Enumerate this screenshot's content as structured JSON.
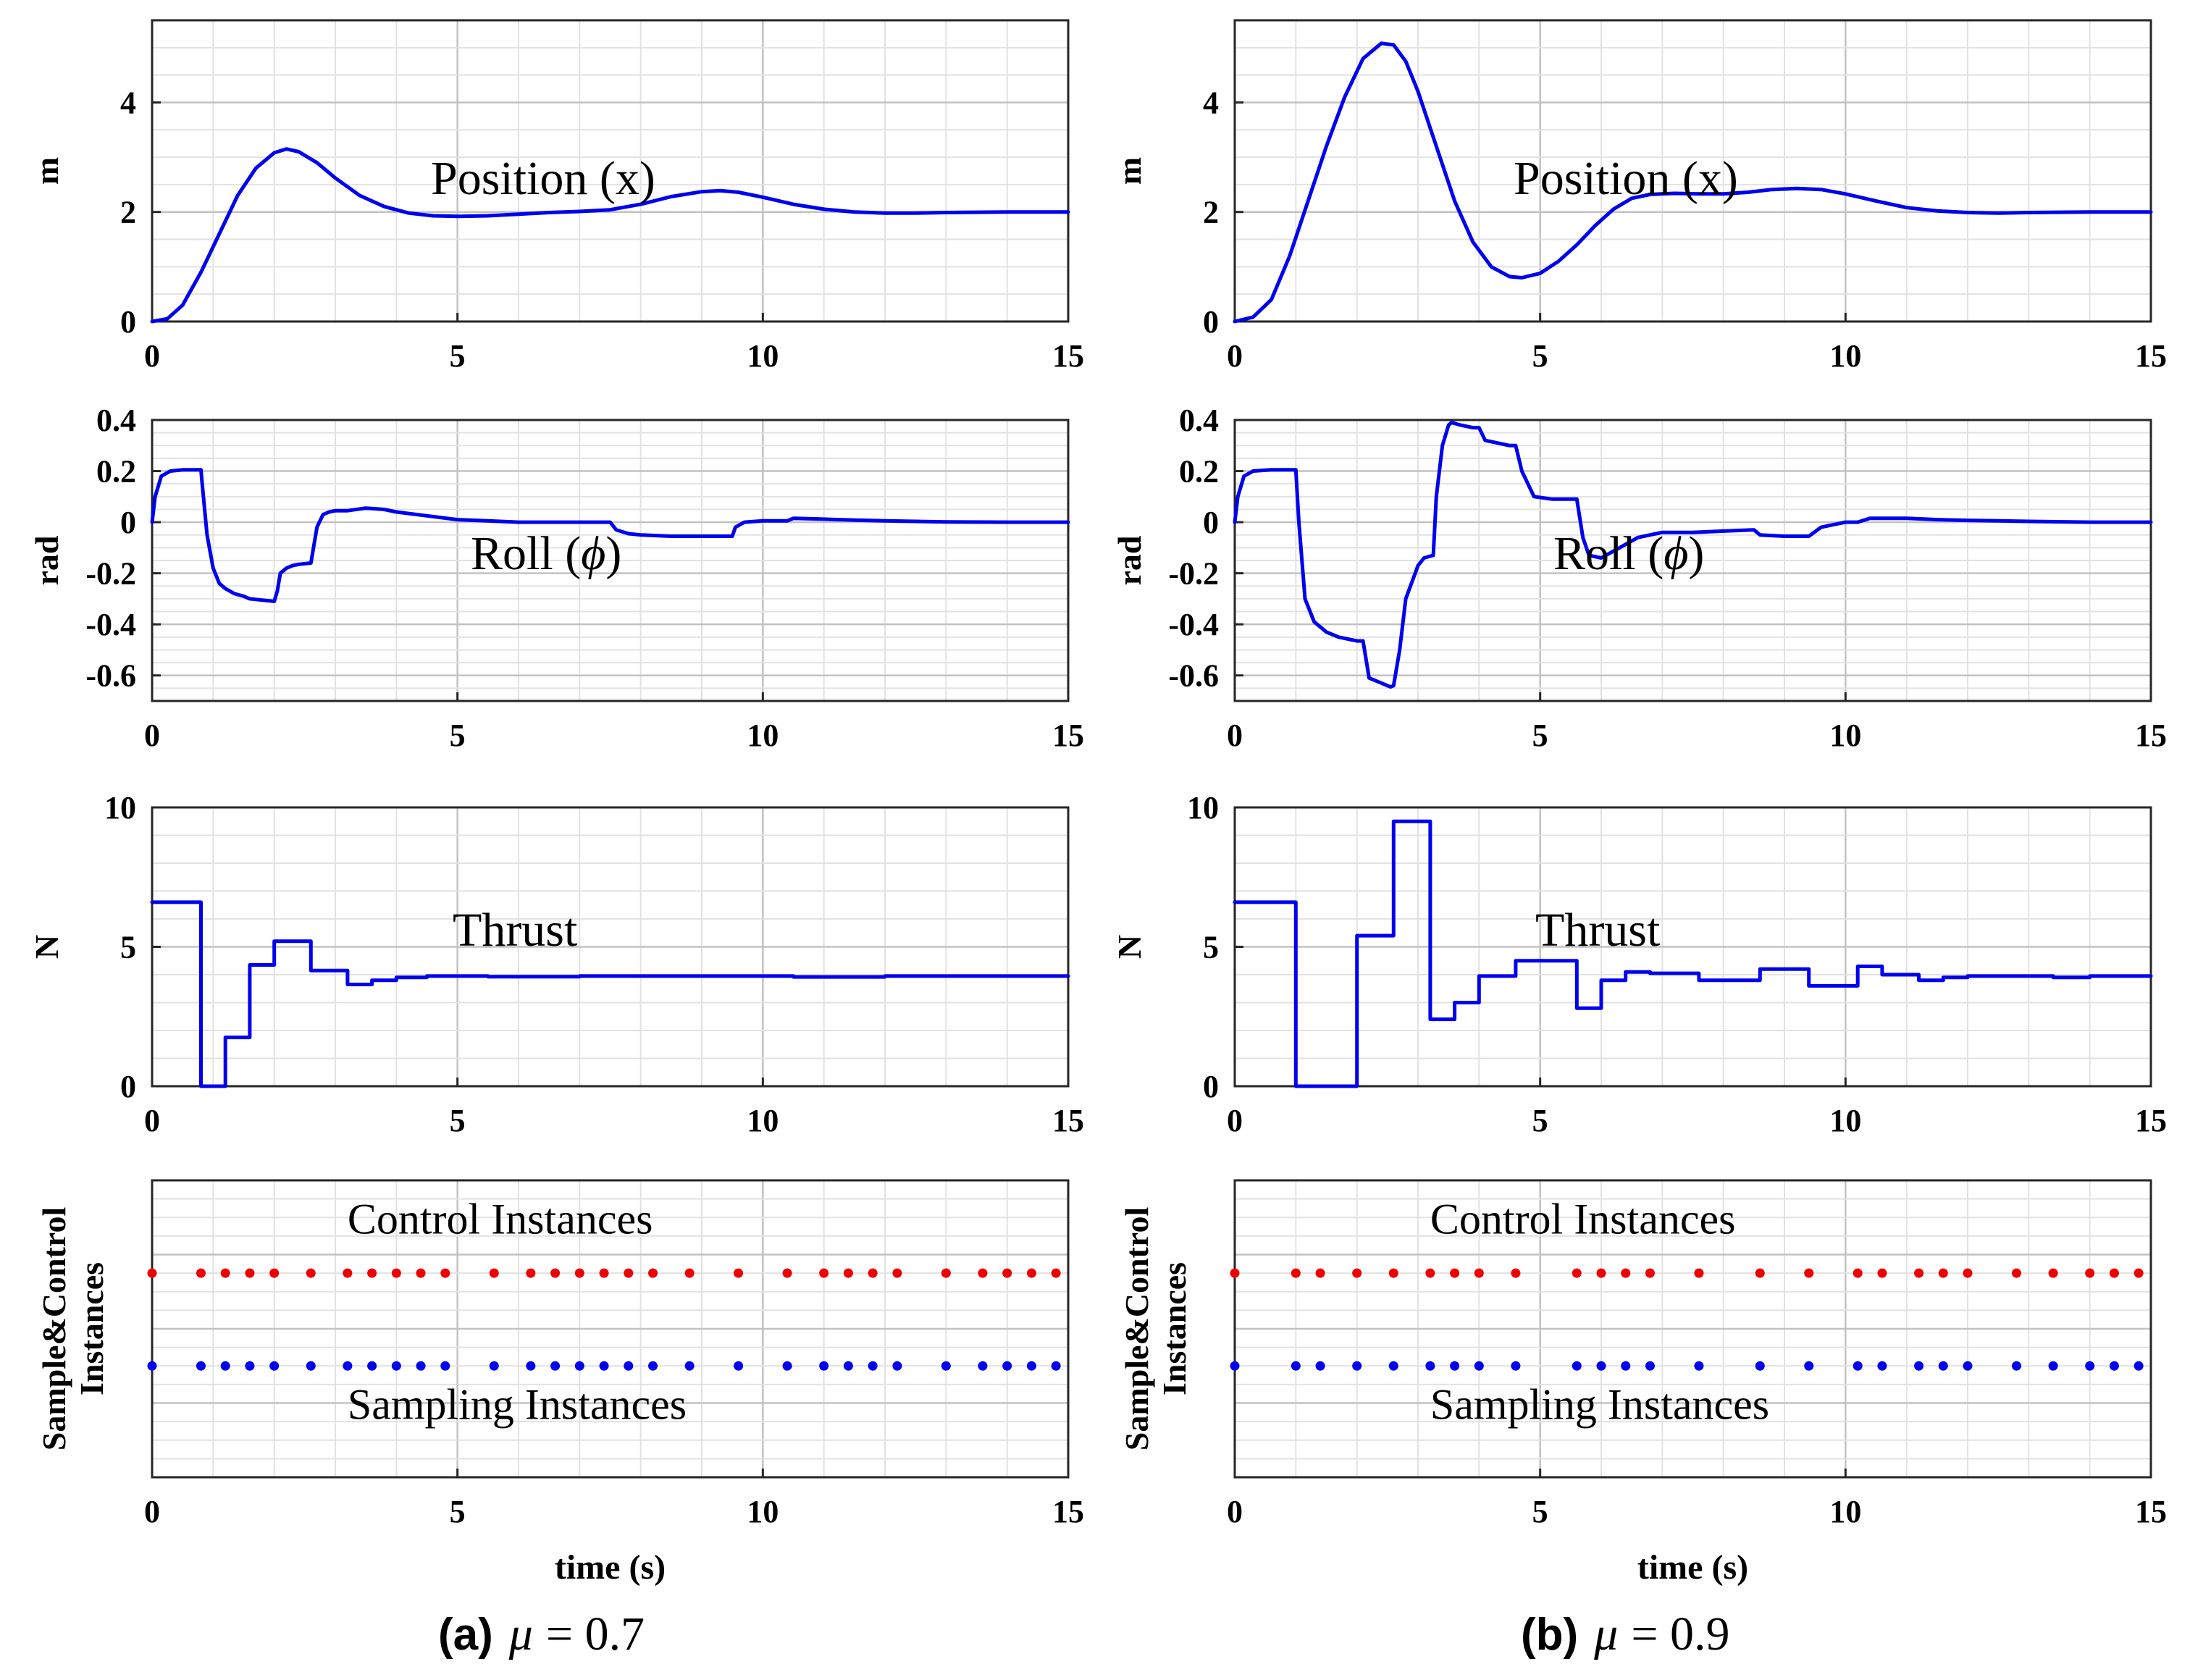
{
  "colors": {
    "line": "#0000ee",
    "control": "#ee0000",
    "sampling": "#0000ee"
  },
  "captions": [
    {
      "letter": "(a)",
      "mu": "μ",
      "eq": "= 0.7"
    },
    {
      "letter": "(b)",
      "mu": "μ",
      "eq": "= 0.9"
    }
  ],
  "chart_data": [
    {
      "type": "line",
      "column": 0,
      "row": 0,
      "ylabel": "m",
      "annotation": {
        "text": "Position (x)"
      },
      "xlim": [
        0,
        15
      ],
      "ylim": [
        0,
        5.5
      ],
      "xticks": [
        0,
        5,
        10,
        15
      ],
      "yticks": [
        0,
        2,
        4
      ],
      "xtick_labels": [
        "0",
        "5",
        "10",
        "15"
      ],
      "ytick_labels": [
        "0",
        "2",
        "4"
      ],
      "xlabel": "",
      "grid": true,
      "series": [
        {
          "name": "Position (x)",
          "x": [
            0,
            0.25,
            0.5,
            0.8,
            1.1,
            1.4,
            1.7,
            2.0,
            2.2,
            2.4,
            2.7,
            3.0,
            3.4,
            3.8,
            4.2,
            4.6,
            5.0,
            5.5,
            6.0,
            6.5,
            7.0,
            7.5,
            8.0,
            8.5,
            9.0,
            9.3,
            9.6,
            10.0,
            10.5,
            11.0,
            11.5,
            12.0,
            12.5,
            13.0,
            14.0,
            15.0
          ],
          "y": [
            0,
            0.05,
            0.3,
            0.9,
            1.6,
            2.3,
            2.8,
            3.08,
            3.15,
            3.1,
            2.9,
            2.62,
            2.3,
            2.1,
            1.98,
            1.93,
            1.92,
            1.93,
            1.96,
            1.99,
            2.01,
            2.04,
            2.14,
            2.28,
            2.37,
            2.39,
            2.36,
            2.27,
            2.14,
            2.05,
            2.0,
            1.98,
            1.98,
            1.99,
            2.0,
            2.0
          ]
        }
      ]
    },
    {
      "type": "line",
      "column": 1,
      "row": 0,
      "ylabel": "m",
      "annotation": {
        "text": "Position (x)"
      },
      "xlim": [
        0,
        15
      ],
      "ylim": [
        0,
        5.5
      ],
      "xticks": [
        0,
        5,
        10,
        15
      ],
      "yticks": [
        0,
        2,
        4
      ],
      "xtick_labels": [
        "0",
        "5",
        "10",
        "15"
      ],
      "ytick_labels": [
        "0",
        "2",
        "4"
      ],
      "xlabel": "",
      "grid": true,
      "series": [
        {
          "name": "Position (x)",
          "x": [
            0,
            0.3,
            0.6,
            0.9,
            1.2,
            1.5,
            1.8,
            2.1,
            2.4,
            2.6,
            2.8,
            3.0,
            3.3,
            3.6,
            3.9,
            4.2,
            4.5,
            4.7,
            5.0,
            5.3,
            5.6,
            5.9,
            6.2,
            6.5,
            6.8,
            7.2,
            7.6,
            8.0,
            8.4,
            8.8,
            9.2,
            9.6,
            10.0,
            10.5,
            11.0,
            11.5,
            12.0,
            12.5,
            13.0,
            14.0,
            15.0
          ],
          "y": [
            0,
            0.08,
            0.4,
            1.2,
            2.2,
            3.2,
            4.1,
            4.8,
            5.08,
            5.05,
            4.75,
            4.2,
            3.2,
            2.2,
            1.45,
            1.0,
            0.82,
            0.8,
            0.88,
            1.1,
            1.4,
            1.75,
            2.05,
            2.25,
            2.32,
            2.34,
            2.33,
            2.33,
            2.36,
            2.41,
            2.43,
            2.41,
            2.33,
            2.2,
            2.08,
            2.02,
            1.99,
            1.98,
            1.99,
            2.0,
            2.0
          ]
        }
      ]
    },
    {
      "type": "line",
      "column": 0,
      "row": 1,
      "ylabel": "rad",
      "annotation": {
        "text": "Roll (",
        "symbol": "ϕ",
        "close": ")"
      },
      "xlim": [
        0,
        15
      ],
      "ylim": [
        -0.7,
        0.4
      ],
      "xticks": [
        0,
        5,
        10,
        15
      ],
      "yticks": [
        -0.6,
        -0.4,
        -0.2,
        0,
        0.2,
        0.4
      ],
      "xtick_labels": [
        "0",
        "5",
        "10",
        "15"
      ],
      "ytick_labels": [
        "-0.6",
        "-0.4",
        "-0.2",
        "0",
        "0.2",
        "0.4"
      ],
      "xlabel": "",
      "grid": true,
      "series": [
        {
          "name": "Roll",
          "x": [
            0,
            0.05,
            0.15,
            0.3,
            0.5,
            0.8,
            0.82,
            0.9,
            1.0,
            1.1,
            1.2,
            1.35,
            1.5,
            1.6,
            1.8,
            2.0,
            2.05,
            2.1,
            2.2,
            2.3,
            2.4,
            2.6,
            2.7,
            2.8,
            2.9,
            3.0,
            3.2,
            3.5,
            3.8,
            4.0,
            4.5,
            5.0,
            5.5,
            6.0,
            6.5,
            7.0,
            7.5,
            7.6,
            7.8,
            8.0,
            8.5,
            9.0,
            9.5,
            9.55,
            9.7,
            10.0,
            10.4,
            10.5,
            11.0,
            11.5,
            12.0,
            12.5,
            13.0,
            14.0,
            15.0
          ],
          "y": [
            0,
            0.1,
            0.18,
            0.2,
            0.205,
            0.205,
            0.15,
            -0.05,
            -0.18,
            -0.24,
            -0.26,
            -0.28,
            -0.29,
            -0.3,
            -0.305,
            -0.31,
            -0.27,
            -0.2,
            -0.18,
            -0.17,
            -0.165,
            -0.16,
            -0.02,
            0.03,
            0.04,
            0.045,
            0.045,
            0.055,
            0.05,
            0.04,
            0.025,
            0.01,
            0.005,
            0.0,
            0.0,
            0.0,
            0.0,
            -0.03,
            -0.045,
            -0.05,
            -0.055,
            -0.055,
            -0.055,
            -0.02,
            0.0,
            0.005,
            0.005,
            0.015,
            0.012,
            0.008,
            0.005,
            0.003,
            0.001,
            0.0,
            0.0
          ]
        }
      ]
    },
    {
      "type": "line",
      "column": 1,
      "row": 1,
      "ylabel": "rad",
      "annotation": {
        "text": "Roll (",
        "symbol": "ϕ",
        "close": ")"
      },
      "xlim": [
        0,
        15
      ],
      "ylim": [
        -0.7,
        0.4
      ],
      "xticks": [
        0,
        5,
        10,
        15
      ],
      "yticks": [
        -0.6,
        -0.4,
        -0.2,
        0,
        0.2,
        0.4
      ],
      "xtick_labels": [
        "0",
        "5",
        "10",
        "15"
      ],
      "ytick_labels": [
        "-0.6",
        "-0.4",
        "-0.2",
        "0",
        "0.2",
        "0.4"
      ],
      "xlabel": "",
      "grid": true,
      "series": [
        {
          "name": "Roll",
          "x": [
            0,
            0.05,
            0.15,
            0.3,
            0.6,
            1.0,
            1.05,
            1.15,
            1.3,
            1.5,
            1.7,
            1.9,
            2.0,
            2.1,
            2.2,
            2.4,
            2.5,
            2.55,
            2.6,
            2.7,
            2.8,
            3.0,
            3.1,
            3.25,
            3.3,
            3.4,
            3.5,
            3.55,
            3.7,
            3.9,
            4.0,
            4.1,
            4.3,
            4.5,
            4.6,
            4.7,
            4.9,
            5.2,
            5.6,
            5.7,
            5.8,
            6.0,
            6.3,
            6.6,
            6.8,
            7.0,
            7.5,
            8.0,
            8.5,
            8.6,
            9.0,
            9.4,
            9.6,
            10.0,
            10.2,
            10.4,
            11.0,
            11.5,
            12.0,
            12.5,
            13.0,
            14.0,
            15.0
          ],
          "y": [
            0,
            0.1,
            0.18,
            0.2,
            0.205,
            0.205,
            0.0,
            -0.3,
            -0.39,
            -0.43,
            -0.45,
            -0.46,
            -0.465,
            -0.465,
            -0.61,
            -0.63,
            -0.64,
            -0.645,
            -0.64,
            -0.5,
            -0.3,
            -0.17,
            -0.14,
            -0.13,
            0.1,
            0.3,
            0.38,
            0.39,
            0.38,
            0.37,
            0.37,
            0.32,
            0.31,
            0.3,
            0.3,
            0.2,
            0.1,
            0.09,
            0.09,
            -0.06,
            -0.13,
            -0.14,
            -0.1,
            -0.06,
            -0.05,
            -0.04,
            -0.04,
            -0.035,
            -0.03,
            -0.05,
            -0.055,
            -0.055,
            -0.02,
            0.0,
            0.0,
            0.015,
            0.015,
            0.01,
            0.007,
            0.005,
            0.003,
            0.0,
            0.0
          ]
        }
      ]
    },
    {
      "type": "line",
      "column": 0,
      "row": 2,
      "ylabel": "N",
      "annotation": {
        "text": "Thrust"
      },
      "xlim": [
        0,
        15
      ],
      "ylim": [
        0,
        10
      ],
      "xticks": [
        0,
        5,
        10,
        15
      ],
      "yticks": [
        0,
        5,
        10
      ],
      "xtick_labels": [
        "0",
        "5",
        "10",
        "15"
      ],
      "ytick_labels": [
        "0",
        "5",
        "10"
      ],
      "xlabel": "",
      "grid": true,
      "series": [
        {
          "name": "Thrust",
          "x": [
            0,
            0.8,
            0.8,
            1.2,
            1.2,
            1.6,
            1.6,
            2.0,
            2.0,
            2.6,
            2.6,
            3.2,
            3.2,
            3.6,
            3.6,
            4.0,
            4.0,
            4.5,
            4.5,
            5.5,
            5.5,
            7.0,
            7.0,
            10.5,
            10.5,
            12.0,
            12.0,
            15.0
          ],
          "y": [
            6.6,
            6.6,
            0.0,
            0.0,
            1.75,
            1.75,
            4.35,
            4.35,
            5.2,
            5.2,
            4.15,
            4.15,
            3.65,
            3.65,
            3.8,
            3.8,
            3.9,
            3.9,
            3.95,
            3.95,
            3.93,
            3.93,
            3.95,
            3.95,
            3.92,
            3.92,
            3.95,
            3.95
          ]
        }
      ]
    },
    {
      "type": "line",
      "column": 1,
      "row": 2,
      "ylabel": "N",
      "annotation": {
        "text": "Thrust"
      },
      "xlim": [
        0,
        15
      ],
      "ylim": [
        0,
        10
      ],
      "xticks": [
        0,
        5,
        10,
        15
      ],
      "yticks": [
        0,
        5,
        10
      ],
      "xtick_labels": [
        "0",
        "5",
        "10",
        "15"
      ],
      "ytick_labels": [
        "0",
        "5",
        "10"
      ],
      "xlabel": "",
      "grid": true,
      "series": [
        {
          "name": "Thrust",
          "x": [
            0,
            1.0,
            1.0,
            2.0,
            2.0,
            2.6,
            2.6,
            3.2,
            3.2,
            3.6,
            3.6,
            4.0,
            4.0,
            4.6,
            4.6,
            5.6,
            5.6,
            6.0,
            6.0,
            6.4,
            6.4,
            6.8,
            6.8,
            7.6,
            7.6,
            8.6,
            8.6,
            9.4,
            9.4,
            10.2,
            10.2,
            10.6,
            10.6,
            11.2,
            11.2,
            11.6,
            11.6,
            12.0,
            12.0,
            12.8,
            12.8,
            13.4,
            13.4,
            14.0,
            14.0,
            15.0
          ],
          "y": [
            6.6,
            6.6,
            0.0,
            0.0,
            5.4,
            5.4,
            9.5,
            9.5,
            2.4,
            2.4,
            3.0,
            3.0,
            3.95,
            3.95,
            4.5,
            4.5,
            2.8,
            2.8,
            3.8,
            3.8,
            4.1,
            4.1,
            4.05,
            4.05,
            3.8,
            3.8,
            4.2,
            4.2,
            3.6,
            3.6,
            4.3,
            4.3,
            4.0,
            4.0,
            3.8,
            3.8,
            3.9,
            3.9,
            3.95,
            3.95,
            3.95,
            3.95,
            3.9,
            3.9,
            3.95,
            3.95
          ]
        }
      ]
    },
    {
      "type": "scatter",
      "column": 0,
      "row": 3,
      "ylabel": "Sample&Control Instances",
      "ylabel_lines": [
        "Sample&Control",
        "Instances"
      ],
      "xlabel": "time (s)",
      "annotations": [
        {
          "text": "Control Instances",
          "x": 3.2,
          "y": 0.8
        },
        {
          "text": "Sampling Instances",
          "x": 3.2,
          "y": -0.2
        }
      ],
      "xlim": [
        0,
        15
      ],
      "ylim": [
        -0.6,
        1.0
      ],
      "xticks": [
        0,
        5,
        10,
        15
      ],
      "yticks": [],
      "xtick_labels": [
        "0",
        "5",
        "10",
        "15"
      ],
      "ytick_labels": [],
      "grid": true,
      "series": [
        {
          "name": "Control Instances",
          "color_key": "control",
          "y_level": 0.5,
          "x": [
            0,
            0.8,
            1.2,
            1.6,
            2.0,
            2.6,
            3.2,
            3.6,
            4.0,
            4.4,
            4.8,
            5.6,
            6.2,
            6.6,
            7.0,
            7.4,
            7.8,
            8.2,
            8.8,
            9.6,
            10.4,
            11.0,
            11.4,
            11.8,
            12.2,
            13.0,
            13.6,
            14.0,
            14.4,
            14.8
          ]
        },
        {
          "name": "Sampling Instances",
          "color_key": "sampling",
          "y_level": 0.0,
          "x": [
            0,
            0.8,
            1.2,
            1.6,
            2.0,
            2.6,
            3.2,
            3.6,
            4.0,
            4.4,
            4.8,
            5.6,
            6.2,
            6.6,
            7.0,
            7.4,
            7.8,
            8.2,
            8.8,
            9.6,
            10.4,
            11.0,
            11.4,
            11.8,
            12.2,
            13.0,
            13.6,
            14.0,
            14.4,
            14.8
          ]
        }
      ]
    },
    {
      "type": "scatter",
      "column": 1,
      "row": 3,
      "ylabel": "Sample&Control Instances",
      "ylabel_lines": [
        "Sample&Control",
        "Instances"
      ],
      "xlabel": "time (s)",
      "annotations": [
        {
          "text": "Control Instances",
          "x": 3.2,
          "y": 0.8
        },
        {
          "text": "Sampling Instances",
          "x": 3.2,
          "y": -0.2
        }
      ],
      "xlim": [
        0,
        15
      ],
      "ylim": [
        -0.6,
        1.0
      ],
      "xticks": [
        0,
        5,
        10,
        15
      ],
      "yticks": [],
      "xtick_labels": [
        "0",
        "5",
        "10",
        "15"
      ],
      "ytick_labels": [],
      "grid": true,
      "series": [
        {
          "name": "Control Instances",
          "color_key": "control",
          "y_level": 0.5,
          "x": [
            0,
            1.0,
            1.4,
            2.0,
            2.6,
            3.2,
            3.6,
            4.0,
            4.6,
            5.6,
            6.0,
            6.4,
            6.8,
            7.6,
            8.6,
            9.4,
            10.2,
            10.6,
            11.2,
            11.6,
            12.0,
            12.8,
            13.4,
            14.0,
            14.4,
            14.8
          ]
        },
        {
          "name": "Sampling Instances",
          "color_key": "sampling",
          "y_level": 0.0,
          "x": [
            0,
            1.0,
            1.4,
            2.0,
            2.6,
            3.2,
            3.6,
            4.0,
            4.6,
            5.6,
            6.0,
            6.4,
            6.8,
            7.6,
            8.6,
            9.4,
            10.2,
            10.6,
            11.2,
            11.6,
            12.0,
            12.8,
            13.4,
            14.0,
            14.4,
            14.8
          ]
        }
      ]
    }
  ]
}
